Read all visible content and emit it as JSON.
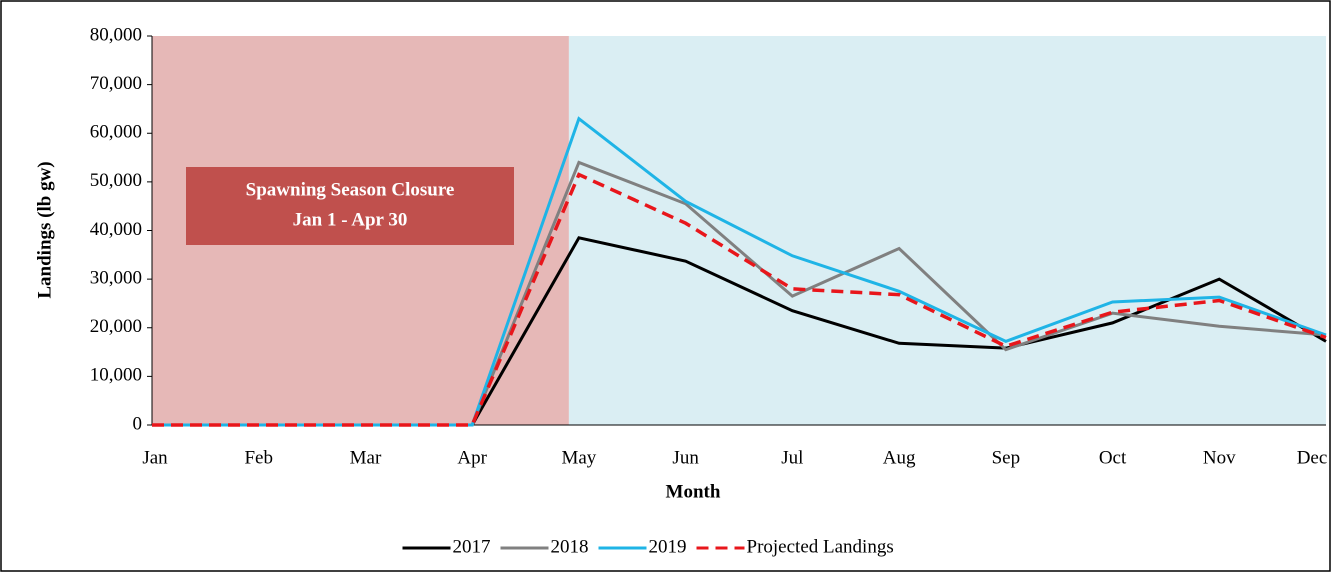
{
  "chart_data": {
    "type": "line",
    "annotation": [
      "Spawning Season Closure",
      "Jan 1 - Apr 30"
    ],
    "xlabel": "Month",
    "ylabel": "Landings (lb gw)",
    "categories": [
      "Jan",
      "Feb",
      "Mar",
      "Apr",
      "May",
      "Jun",
      "Jul",
      "Aug",
      "Sep",
      "Oct",
      "Nov",
      "Dec"
    ],
    "series": [
      {
        "name": "2017",
        "color": "#000000",
        "dash": false,
        "values": [
          0,
          0,
          0,
          0,
          38500,
          33700,
          23500,
          16800,
          15800,
          21000,
          30000,
          17200
        ]
      },
      {
        "name": "2018",
        "color": "#808080",
        "dash": false,
        "values": [
          0,
          0,
          0,
          0,
          54000,
          45500,
          26500,
          36300,
          15500,
          23000,
          20300,
          18500
        ]
      },
      {
        "name": "2019",
        "color": "#1fb4e6",
        "dash": false,
        "values": [
          0,
          0,
          0,
          0,
          63000,
          46000,
          34800,
          27500,
          17200,
          25300,
          26300,
          18500
        ]
      },
      {
        "name": "Projected Landings",
        "color": "#e8161b",
        "dash": true,
        "values": [
          0,
          0,
          0,
          0,
          51500,
          41500,
          28000,
          26800,
          16200,
          23200,
          25600,
          18000
        ]
      }
    ],
    "ylim": [
      0,
      80000
    ],
    "yticks": [
      0,
      {
        "value": 10000,
        "label": "10,000"
      },
      {
        "value": 20000,
        "label": "20,000"
      },
      {
        "value": 30000,
        "label": "30,000"
      },
      {
        "value": 40000,
        "label": "40,000"
      },
      {
        "value": 50000,
        "label": "50,000"
      },
      {
        "value": 60000,
        "label": "60,000"
      },
      {
        "value": 70000,
        "label": "70,000"
      },
      {
        "value": 80000,
        "label": "80,000"
      }
    ],
    "legend": "bottom"
  }
}
